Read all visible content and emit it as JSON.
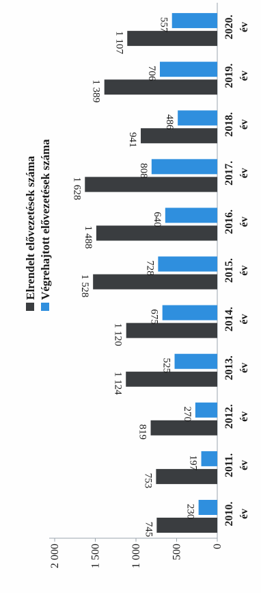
{
  "chart_data": {
    "type": "bar",
    "title": "",
    "categories": [
      "2010. év",
      "2011. év",
      "2012. év",
      "2013. év",
      "2014. év",
      "2015. év",
      "2016. év",
      "2017. év",
      "2018. év",
      "2019. év",
      "2020. év"
    ],
    "series": [
      {
        "name": "Elrendelt elővezetések száma",
        "values": [
          745,
          753,
          819,
          1124,
          1120,
          1528,
          1488,
          1628,
          941,
          1389,
          1107
        ],
        "labels": [
          "745",
          "753",
          "819",
          "1 124",
          "1 120",
          "1 528",
          "1 488",
          "1 628",
          "941",
          "1 389",
          "1 107"
        ],
        "color": "#3a3d40"
      },
      {
        "name": "Végrehajtott elővezetések száma",
        "values": [
          230,
          197,
          270,
          525,
          675,
          728,
          640,
          808,
          486,
          706,
          557
        ],
        "labels": [
          "230",
          "197",
          "270",
          "525",
          "675",
          "728",
          "640",
          "808",
          "486",
          "706",
          "557"
        ],
        "color": "#2f8fde"
      }
    ],
    "yticks": [
      0,
      500,
      1000,
      1500,
      2000
    ],
    "ytick_labels": [
      "0",
      "500",
      "1 000",
      "1 500",
      "2 000"
    ],
    "ylim": [
      0,
      2000
    ],
    "legend": "top"
  }
}
